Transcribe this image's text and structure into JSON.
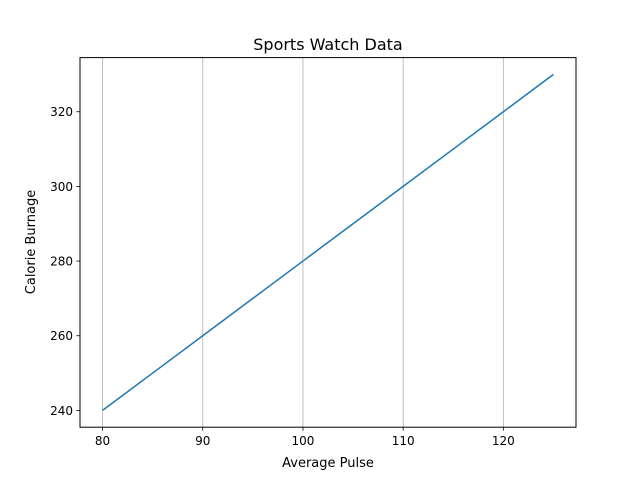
{
  "chart_data": {
    "type": "line",
    "title": "Sports Watch Data",
    "xlabel": "Average Pulse",
    "ylabel": "Calorie Burnage",
    "x": [
      80,
      85,
      90,
      95,
      100,
      105,
      110,
      115,
      120,
      125
    ],
    "series": [
      {
        "values": [
          240,
          250,
          260,
          270,
          280,
          290,
          300,
          310,
          320,
          330
        ],
        "color": "#1f77b4"
      }
    ],
    "xlim": [
      77.75,
      127.25
    ],
    "ylim": [
      235.5,
      334.5
    ],
    "xticks": [
      80,
      90,
      100,
      110,
      120
    ],
    "yticks": [
      240,
      260,
      280,
      300,
      320
    ],
    "grid": "x-axis only",
    "grid_color": "#b0b0b0"
  }
}
